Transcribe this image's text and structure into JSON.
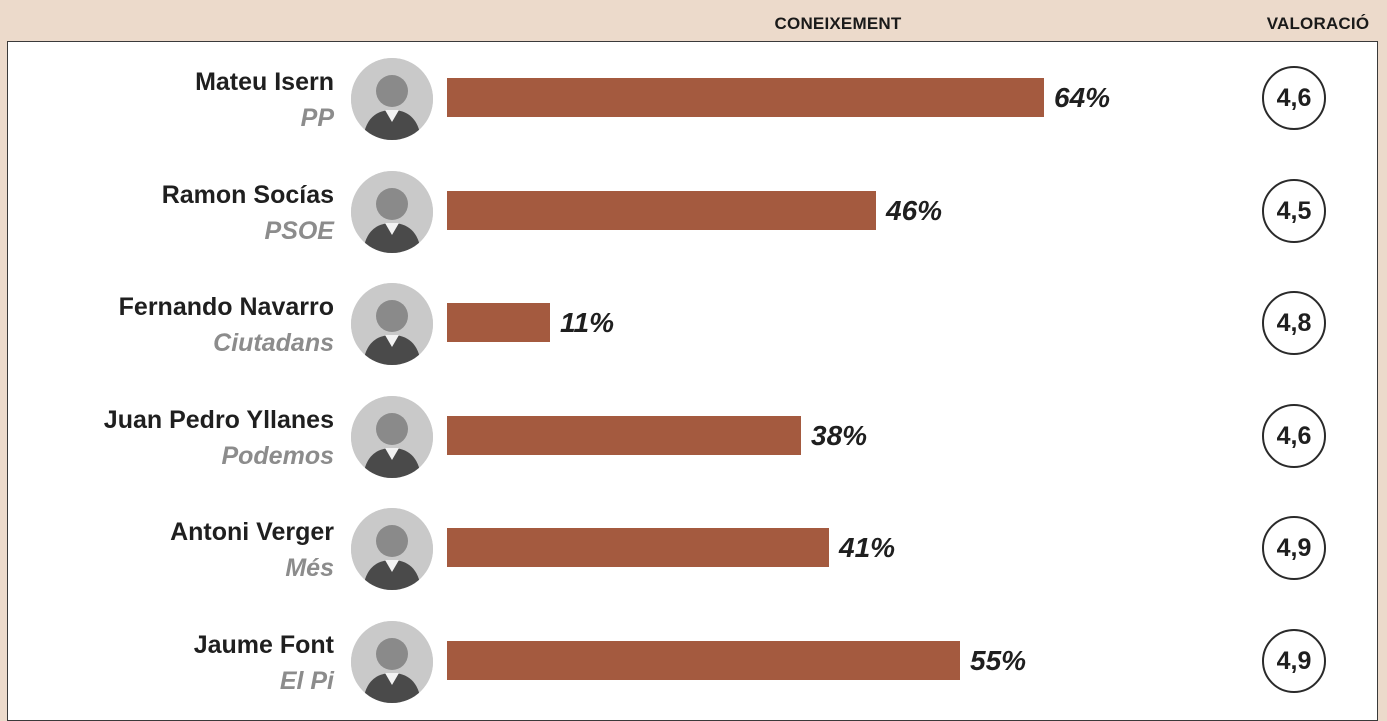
{
  "chart_data": {
    "type": "bar",
    "orientation": "horizontal",
    "column_headers": {
      "knowledge": "CONEIXEMENT",
      "rating": "VALORACIÓ"
    },
    "xlim": [
      0,
      64
    ],
    "categories": [
      "Mateu Isern",
      "Ramon Socías",
      "Fernando Navarro",
      "Juan Pedro Yllanes",
      "Antoni Verger",
      "Jaume Font"
    ],
    "rows": [
      {
        "name": "Mateu Isern",
        "party": "PP",
        "value": 64,
        "value_label": "64%",
        "rating": "4,6",
        "photo_icon": "person-photo-icon"
      },
      {
        "name": "Ramon Socías",
        "party": "PSOE",
        "value": 46,
        "value_label": "46%",
        "rating": "4,5",
        "photo_icon": "person-photo-icon"
      },
      {
        "name": "Fernando Navarro",
        "party": "Ciutadans",
        "value": 11,
        "value_label": "11%",
        "rating": "4,8",
        "photo_icon": "person-photo-icon"
      },
      {
        "name": "Juan Pedro Yllanes",
        "party": "Podemos",
        "value": 38,
        "value_label": "38%",
        "rating": "4,6",
        "photo_icon": "person-photo-icon"
      },
      {
        "name": "Antoni Verger",
        "party": "Més",
        "value": 41,
        "value_label": "41%",
        "rating": "4,9",
        "photo_icon": "person-photo-icon"
      },
      {
        "name": "Jaume Font",
        "party": "El Pi",
        "value": 55,
        "value_label": "55%",
        "rating": "4,9",
        "photo_icon": "person-photo-icon"
      }
    ],
    "colors": {
      "bar": "#a45a3f",
      "background": "#ecdacb",
      "party_text": "#8c8c8c"
    }
  }
}
